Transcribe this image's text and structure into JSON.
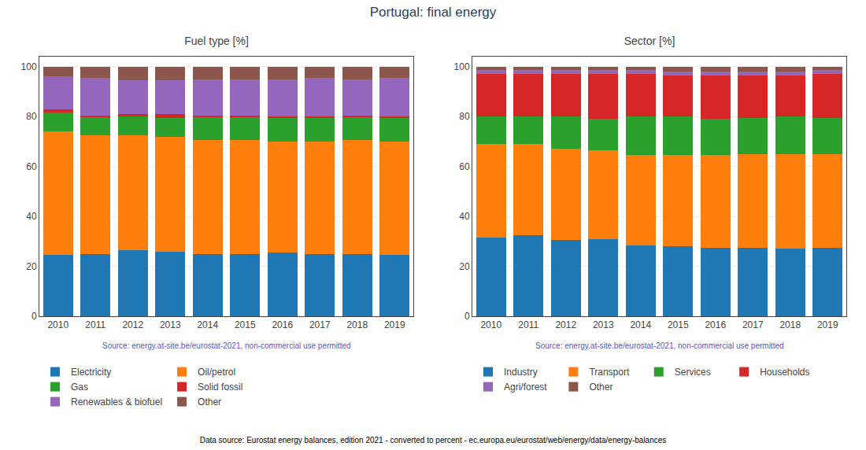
{
  "title": "Portugal: final energy",
  "annotations": [
    "Data source: Eurostat energy balances, edition 2021 - converted to percent - ec.europa.eu/eurostat/web/energy/data/energy-balances"
  ],
  "chart_data": [
    {
      "type": "bar",
      "title": "Fuel type [%]",
      "categories": [
        "2010",
        "2011",
        "2012",
        "2013",
        "2014",
        "2015",
        "2016",
        "2017",
        "2018",
        "2019"
      ],
      "series": [
        {
          "name": "Electricity",
          "color": "#1f77b4",
          "values": [
            24.5,
            25.0,
            26.5,
            26.0,
            25.0,
            25.0,
            25.5,
            25.0,
            25.0,
            24.5
          ]
        },
        {
          "name": "Oil/petrol",
          "color": "#ff7f0e",
          "values": [
            49.5,
            47.5,
            46.0,
            46.0,
            45.5,
            45.5,
            44.5,
            45.0,
            45.5,
            45.5
          ]
        },
        {
          "name": "Gas",
          "color": "#2ca02c",
          "values": [
            7.5,
            7.5,
            7.5,
            7.5,
            9.5,
            9.5,
            9.5,
            9.5,
            9.5,
            9.5
          ]
        },
        {
          "name": "Solid fossil",
          "color": "#d62728",
          "values": [
            1.5,
            0.5,
            1.0,
            1.5,
            0.5,
            0.5,
            0.5,
            0.5,
            0.5,
            0.5
          ]
        },
        {
          "name": "Renewables & biofuel",
          "color": "#9467bd",
          "values": [
            13.0,
            15.0,
            13.5,
            13.5,
            14.5,
            14.5,
            15.0,
            15.5,
            14.5,
            15.5
          ]
        },
        {
          "name": "Other",
          "color": "#8c564b",
          "values": [
            4.0,
            4.5,
            5.5,
            5.5,
            5.0,
            5.0,
            5.0,
            4.5,
            5.0,
            4.5
          ]
        }
      ],
      "stacked": true,
      "ylim": [
        0,
        104
      ],
      "yticks": [
        0,
        20,
        40,
        60,
        80,
        100
      ],
      "grid": true,
      "legend": "bottom",
      "annotations": [
        "Source: energy.at-site.be/eurostat-2021, non-commercial use permitted"
      ]
    },
    {
      "type": "bar",
      "title": "Sector [%]",
      "categories": [
        "2010",
        "2011",
        "2012",
        "2013",
        "2014",
        "2015",
        "2016",
        "2017",
        "2018",
        "2019"
      ],
      "series": [
        {
          "name": "Industry",
          "color": "#1f77b4",
          "values": [
            31.5,
            32.5,
            30.5,
            31.0,
            28.5,
            28.0,
            27.5,
            27.5,
            27.0,
            27.5
          ]
        },
        {
          "name": "Transport",
          "color": "#ff7f0e",
          "values": [
            37.5,
            36.5,
            36.5,
            35.5,
            36.0,
            36.5,
            37.0,
            37.5,
            38.0,
            37.5
          ]
        },
        {
          "name": "Services",
          "color": "#2ca02c",
          "values": [
            11.0,
            11.0,
            13.0,
            12.5,
            15.5,
            15.5,
            14.5,
            14.5,
            15.0,
            14.5
          ]
        },
        {
          "name": "Households",
          "color": "#d62728",
          "values": [
            17.0,
            17.0,
            17.0,
            18.0,
            17.0,
            16.5,
            17.5,
            17.0,
            16.5,
            17.5
          ]
        },
        {
          "name": "Agri/forest",
          "color": "#9467bd",
          "values": [
            1.5,
            1.5,
            1.5,
            1.5,
            1.5,
            1.5,
            1.5,
            1.5,
            1.5,
            1.5
          ]
        },
        {
          "name": "Other",
          "color": "#8c564b",
          "values": [
            1.5,
            1.5,
            1.5,
            1.5,
            1.5,
            2.0,
            2.0,
            2.0,
            2.0,
            1.5
          ]
        }
      ],
      "stacked": true,
      "ylim": [
        0,
        104
      ],
      "yticks": [
        0,
        20,
        40,
        60,
        80,
        100
      ],
      "grid": true,
      "legend": "bottom",
      "annotations": [
        "Source: energy.at-site.be/eurostat-2021, non-commercial use permitted"
      ]
    }
  ]
}
